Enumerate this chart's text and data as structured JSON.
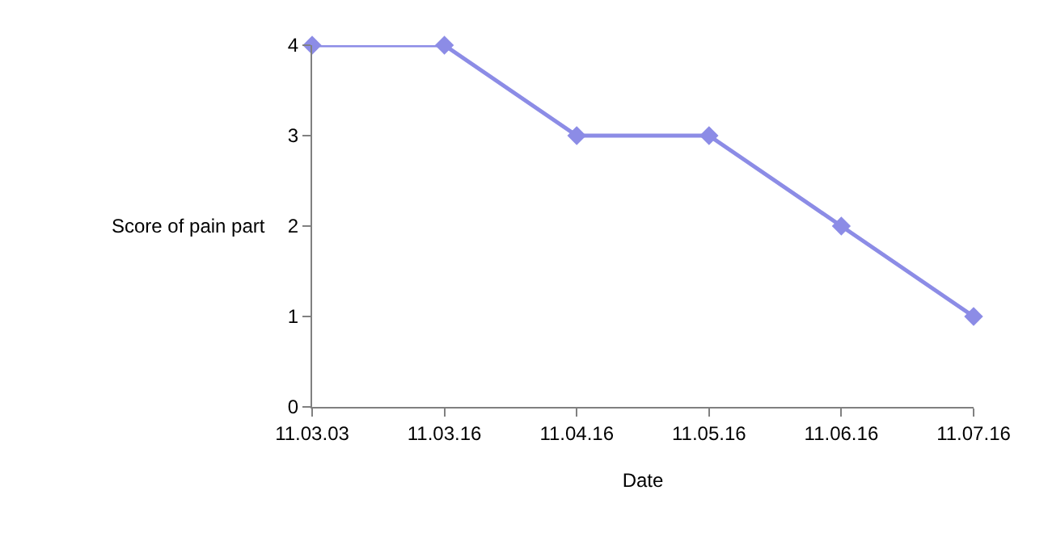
{
  "chart_data": {
    "type": "line",
    "xlabel": "Date",
    "ylabel": "Score of pain part",
    "categories": [
      "11.03.03",
      "11.03.16",
      "11.04.16",
      "11.05.16",
      "11.06.16",
      "11.07.16"
    ],
    "series": [
      {
        "color": "#8c8ce6",
        "values": [
          4,
          4,
          3,
          3,
          2,
          1
        ]
      }
    ],
    "ylim": [
      0,
      4
    ],
    "yticks": [
      0,
      1,
      2,
      3,
      4
    ],
    "legend": false,
    "marker": "diamond",
    "line_style": "solid"
  }
}
